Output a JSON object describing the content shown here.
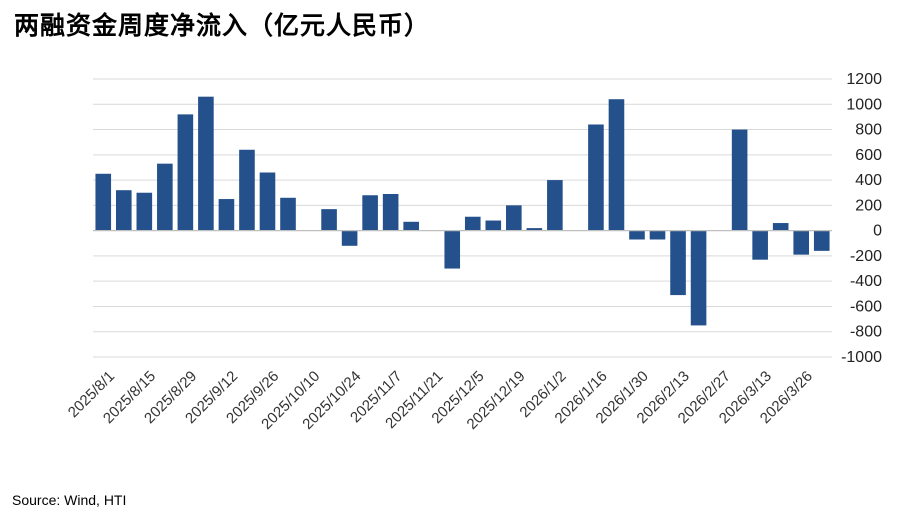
{
  "chart_data": {
    "type": "bar",
    "title": "两融资金周度净流入（亿元人民币）",
    "source": "Source: Wind, HTI",
    "ylim": [
      -1000,
      1200
    ],
    "yticks": [
      1200,
      1000,
      800,
      600,
      400,
      200,
      0,
      -200,
      -400,
      -600,
      -800,
      -1000
    ],
    "grid": true,
    "bar_color": "#24508B",
    "grid_color": "#D9D9D9",
    "axis_color": "#BFBFBF",
    "tick_labels": [
      "2025/8/1",
      "2025/8/15",
      "2025/8/29",
      "2025/9/12",
      "2025/9/26",
      "2025/10/10",
      "2025/10/24",
      "2025/11/7",
      "2025/11/21",
      "2025/12/5",
      "2025/12/19",
      "2026/1/2",
      "2026/1/16",
      "2026/1/30",
      "2026/2/13",
      "2026/2/27",
      "2026/3/13",
      "2026/3/26"
    ],
    "values": [
      450,
      320,
      300,
      530,
      920,
      1060,
      250,
      640,
      460,
      260,
      0,
      170,
      -120,
      280,
      290,
      70,
      0,
      -300,
      110,
      80,
      200,
      20,
      400,
      0,
      840,
      1040,
      -70,
      -70,
      -510,
      -750,
      0,
      800,
      -230,
      60,
      -190,
      -160
    ]
  }
}
